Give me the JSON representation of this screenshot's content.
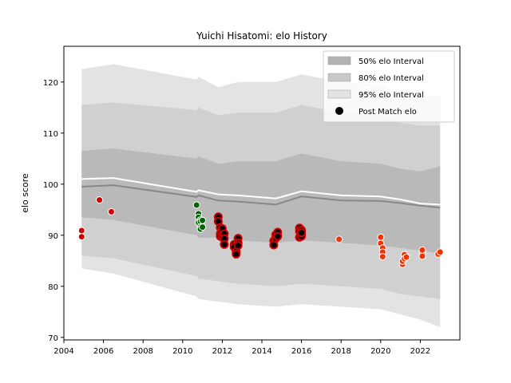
{
  "chart_data": {
    "type": "scatter",
    "title": "Yuichi Hisatomi: elo History",
    "xlabel": "",
    "ylabel": "elo score",
    "xlim": [
      2004.0,
      2024.0
    ],
    "ylim": [
      69.5,
      127.0
    ],
    "x_ticks": [
      2004,
      2006,
      2008,
      2010,
      2012,
      2014,
      2016,
      2018,
      2020,
      2022
    ],
    "y_ticks": [
      70,
      80,
      90,
      100,
      110,
      120
    ],
    "grid": false,
    "legend_position": "top-right",
    "legend": [
      {
        "label": "50% elo Interval",
        "kind": "band",
        "color": "#b3b3b3"
      },
      {
        "label": "80% elo Interval",
        "kind": "band",
        "color": "#c8c8c8"
      },
      {
        "label": "95% elo Interval",
        "kind": "band",
        "color": "#e3e3e3"
      },
      {
        "label": "Post Match elo",
        "kind": "marker",
        "color": "#000000"
      }
    ],
    "band_x": [
      2004.9,
      2006.5,
      2010.7,
      2010.8,
      2011.8,
      2012.8,
      2014.7,
      2016.0,
      2018.0,
      2020.0,
      2021.0,
      2022.0,
      2023.0
    ],
    "bands": [
      {
        "name": "95% elo Interval",
        "color": "#e3e3e3",
        "lower": [
          83.5,
          82.5,
          78.0,
          77.5,
          77.0,
          76.5,
          76.0,
          76.5,
          76.0,
          75.5,
          74.5,
          73.5,
          72.0
        ],
        "upper": [
          122.5,
          123.5,
          120.5,
          121.0,
          119.0,
          120.0,
          120.0,
          121.5,
          120.0,
          119.5,
          117.5,
          117.0,
          117.5
        ]
      },
      {
        "name": "80% elo Interval",
        "color": "#d0d0d0",
        "lower": [
          86.0,
          85.5,
          82.0,
          81.5,
          81.0,
          80.5,
          80.0,
          80.5,
          80.0,
          79.5,
          78.5,
          78.0,
          77.5
        ],
        "upper": [
          115.5,
          116.0,
          114.5,
          115.0,
          113.5,
          114.0,
          114.0,
          115.5,
          114.0,
          113.5,
          112.0,
          111.5,
          111.5
        ]
      },
      {
        "name": "50% elo Interval",
        "color": "#b9b9b9",
        "lower": [
          93.5,
          93.0,
          90.0,
          89.5,
          89.5,
          89.0,
          88.5,
          89.0,
          88.5,
          88.0,
          87.5,
          87.0,
          86.5
        ],
        "upper": [
          106.5,
          107.0,
          105.0,
          105.5,
          104.0,
          104.5,
          104.5,
          106.0,
          104.5,
          104.0,
          103.0,
          102.5,
          103.5
        ]
      }
    ],
    "lines": [
      {
        "name": "median",
        "color": "#888888",
        "x": [
          2004.9,
          2006.5,
          2010.7,
          2010.8,
          2011.8,
          2012.8,
          2014.7,
          2016.0,
          2018.0,
          2020.0,
          2021.0,
          2022.0,
          2023.0
        ],
        "y": [
          99.5,
          99.8,
          97.5,
          97.8,
          96.8,
          96.6,
          96.0,
          97.6,
          96.8,
          96.7,
          96.3,
          95.8,
          95.4
        ]
      },
      {
        "name": "mean",
        "color": "#ffffff",
        "x": [
          2004.9,
          2006.5,
          2010.7,
          2010.8,
          2011.8,
          2012.8,
          2014.7,
          2016.0,
          2018.0,
          2020.0,
          2021.0,
          2022.0,
          2023.0
        ],
        "y": [
          101.0,
          101.2,
          98.5,
          98.8,
          98.0,
          97.8,
          97.2,
          98.6,
          97.8,
          97.6,
          97.0,
          96.2,
          96.0
        ]
      }
    ],
    "series": [
      {
        "color": "#cc0000",
        "points": [
          [
            2004.9,
            90.9
          ],
          [
            2004.9,
            89.7
          ],
          [
            2005.8,
            96.9
          ],
          [
            2006.4,
            94.6
          ]
        ]
      },
      {
        "color": "#006600",
        "points": [
          [
            2010.7,
            95.9
          ],
          [
            2010.8,
            94.2
          ],
          [
            2010.8,
            93.5
          ],
          [
            2010.9,
            93.0
          ],
          [
            2010.8,
            92.5
          ],
          [
            2010.9,
            92.7
          ],
          [
            2011.0,
            92.9
          ],
          [
            2010.9,
            91.6
          ],
          [
            2010.9,
            91.2
          ],
          [
            2011.0,
            91.6
          ]
        ]
      },
      {
        "color": "#cc0000",
        "points": [
          [
            2011.8,
            93.6
          ],
          [
            2011.8,
            92.7
          ],
          [
            2011.9,
            91.5
          ],
          [
            2011.9,
            90.3
          ],
          [
            2011.9,
            89.8
          ],
          [
            2012.0,
            91.3
          ],
          [
            2012.0,
            89.6
          ],
          [
            2012.1,
            90.3
          ],
          [
            2012.1,
            89.3
          ],
          [
            2012.1,
            88.2
          ],
          [
            2012.6,
            88.2
          ],
          [
            2012.6,
            87.7
          ],
          [
            2012.7,
            86.8
          ],
          [
            2012.7,
            86.3
          ],
          [
            2012.8,
            89.4
          ],
          [
            2012.8,
            88.5
          ],
          [
            2012.8,
            88.0
          ],
          [
            2014.6,
            88.9
          ],
          [
            2014.6,
            88.1
          ],
          [
            2014.7,
            89.4
          ],
          [
            2014.7,
            90.1
          ],
          [
            2014.8,
            90.6
          ],
          [
            2014.8,
            89.8
          ],
          [
            2015.9,
            91.4
          ],
          [
            2015.9,
            90.8
          ],
          [
            2015.9,
            89.6
          ],
          [
            2016.0,
            90.2
          ],
          [
            2016.0,
            89.8
          ],
          [
            2016.0,
            91.0
          ],
          [
            2016.0,
            90.5
          ]
        ]
      },
      {
        "color": "#ee3300",
        "points": [
          [
            2017.9,
            89.2
          ],
          [
            2020.0,
            89.6
          ],
          [
            2020.0,
            88.4
          ],
          [
            2020.1,
            87.5
          ],
          [
            2020.1,
            86.7
          ],
          [
            2020.1,
            85.8
          ],
          [
            2021.1,
            84.3
          ],
          [
            2021.1,
            84.9
          ],
          [
            2021.2,
            86.2
          ],
          [
            2021.2,
            85.4
          ],
          [
            2021.3,
            85.7
          ],
          [
            2022.1,
            86.4
          ],
          [
            2022.1,
            85.9
          ],
          [
            2022.1,
            87.1
          ],
          [
            2022.9,
            86.3
          ],
          [
            2023.0,
            86.7
          ]
        ]
      }
    ],
    "marker_edge_black_years": [
      [
        2011.7,
        2016.2
      ]
    ]
  }
}
